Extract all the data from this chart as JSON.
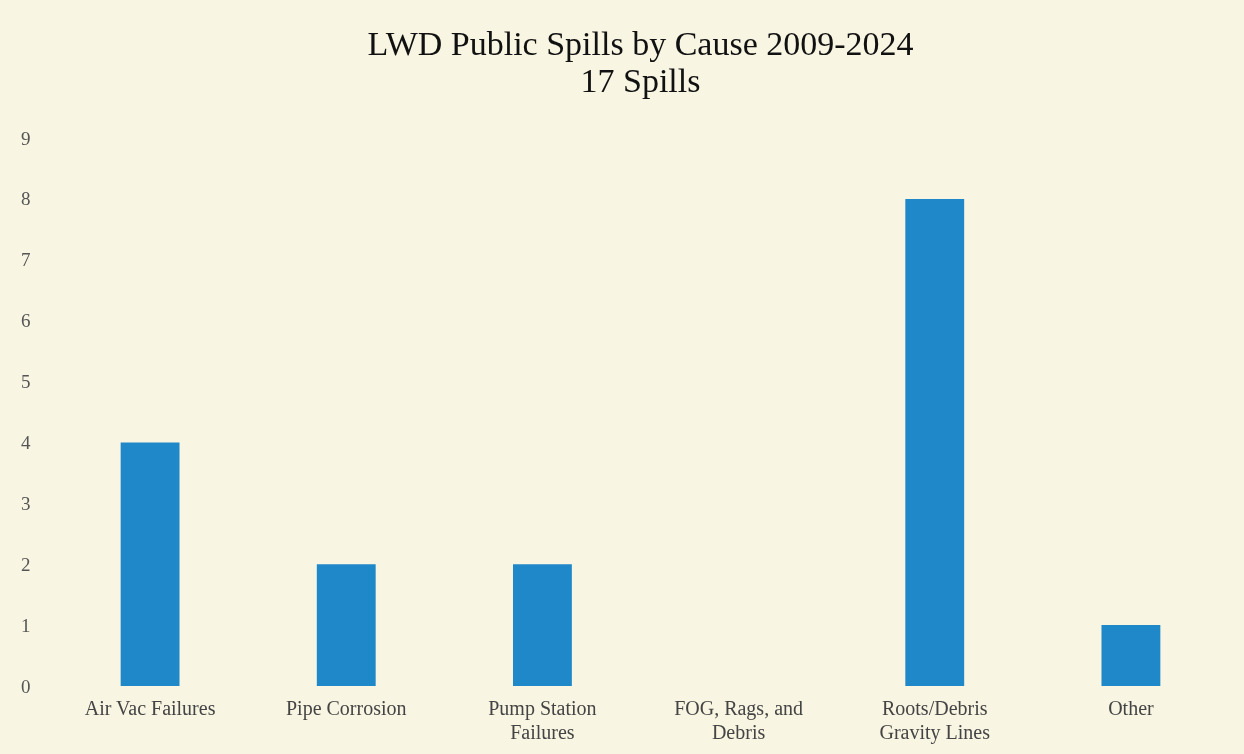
{
  "chart_data": {
    "type": "bar",
    "title": "LWD Public Spills by Cause 2009-2024",
    "subtitle": "17 Spills",
    "categories": [
      "Air Vac Failures",
      "Pipe Corrosion",
      "Pump Station Failures",
      "FOG, Rags, and Debris",
      "Roots/Debris Gravity Lines",
      "Other"
    ],
    "values": [
      4,
      2,
      2,
      0,
      8,
      1
    ],
    "color": "#1e88c8",
    "ylim": [
      0,
      9
    ],
    "yticks": [
      0,
      1,
      2,
      3,
      4,
      5,
      6,
      7,
      8,
      9
    ],
    "grid": false,
    "legend": false
  }
}
